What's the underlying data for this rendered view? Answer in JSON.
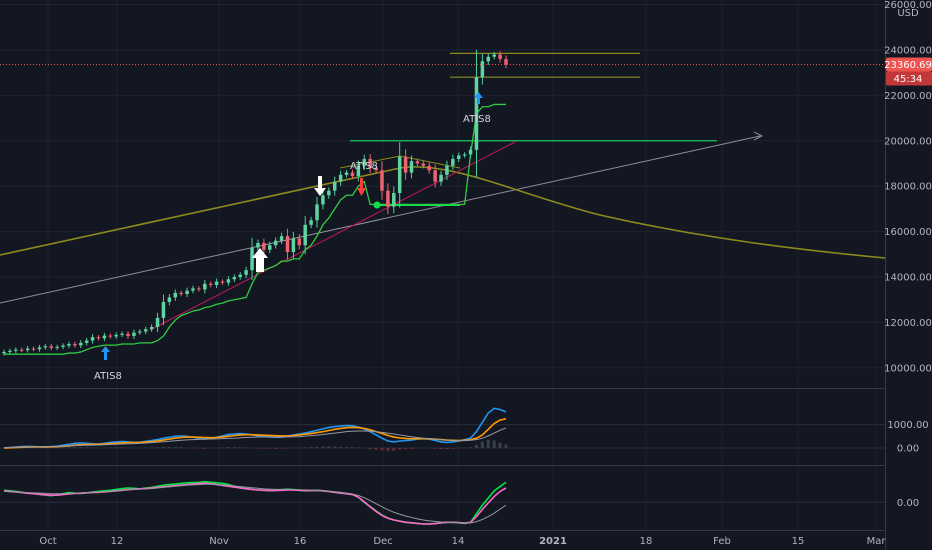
{
  "chart_data": [
    {
      "type": "candlestick",
      "currency": "USD",
      "y_ticks": [
        "10000.00",
        "12000.00",
        "14000.00",
        "16000.00",
        "18000.00",
        "20000.00",
        "22000.00",
        "24000.00",
        "26000.00"
      ],
      "y_tick_values": [
        10000,
        12000,
        14000,
        16000,
        18000,
        20000,
        22000,
        24000,
        26000
      ],
      "ylim": [
        9200,
        26200
      ],
      "x_tick_labels": [
        "Oct",
        "12",
        "Nov",
        "16",
        "Dec",
        "14",
        "2021",
        "18",
        "Feb",
        "15",
        "Mar"
      ],
      "last_price": "23360.69",
      "countdown": "45:34",
      "annotations": [
        "ATIS8",
        "ATIS8",
        "ATIS8"
      ],
      "close_series": [
        10700,
        10750,
        10800,
        10780,
        10850,
        10820,
        10900,
        10950,
        10880,
        10920,
        10980,
        11050,
        10990,
        11100,
        11200,
        11350,
        11300,
        11420,
        11380,
        11450,
        11500,
        11400,
        11550,
        11600,
        11700,
        11800,
        12200,
        12900,
        13100,
        13300,
        13250,
        13400,
        13500,
        13450,
        13700,
        13650,
        13800,
        13750,
        13900,
        14000,
        14100,
        14300,
        15300,
        15500,
        15200,
        15400,
        15600,
        15800,
        15100,
        15700,
        15400,
        16300,
        16500,
        17200,
        17600,
        17800,
        18200,
        18500,
        18600,
        18450,
        18900,
        19200,
        18800,
        18700,
        17800,
        17100,
        17700,
        19300,
        18600,
        19100,
        19000,
        18900,
        18700,
        18200,
        18500,
        18900,
        19200,
        19350,
        19400,
        19600,
        22800,
        23500,
        23700,
        23800,
        23600,
        23360.69
      ],
      "stop_line": [
        10600,
        10600,
        10600,
        10600,
        10600,
        10600,
        10600,
        10600,
        10600,
        10600,
        10600,
        10650,
        10650,
        10700,
        10800,
        10900,
        10950,
        11000,
        11000,
        11000,
        11050,
        11050,
        11050,
        11100,
        11100,
        11100,
        11200,
        11400,
        11800,
        12100,
        12300,
        12400,
        12500,
        12550,
        12650,
        12700,
        12800,
        12850,
        12950,
        13000,
        13050,
        13100,
        13700,
        14200,
        14300,
        14400,
        14500,
        14700,
        14700,
        14800,
        14800,
        15200,
        15400,
        15800,
        16300,
        16600,
        17000,
        17400,
        17600,
        17600,
        18000,
        18200,
        17200,
        17200,
        17200,
        17200,
        17200,
        17200,
        17200,
        17200,
        17200,
        17200,
        17200,
        17200,
        17200,
        17200,
        17200,
        17200,
        17200,
        19400,
        21200,
        21500,
        21500,
        21600,
        21600,
        21600
      ],
      "horizontal_levels": [
        20000,
        23850,
        22800
      ],
      "panels": [
        {
          "y_ticks": [
            "1000.00",
            "0.00"
          ],
          "y_tick_values": [
            1000,
            0
          ],
          "ylim": [
            -600,
            2400
          ],
          "series": [
            {
              "color": "#2196f3",
              "values": [
                0,
                20,
                40,
                60,
                70,
                60,
                50,
                40,
                60,
                80,
                120,
                160,
                200,
                220,
                200,
                180,
                170,
                200,
                240,
                260,
                280,
                260,
                240,
                250,
                280,
                320,
                360,
                420,
                460,
                500,
                520,
                500,
                460,
                420,
                380,
                420,
                460,
                520,
                580,
                600,
                620,
                600,
                560,
                520,
                500,
                480,
                460,
                470,
                500,
                560,
                600,
                640,
                700,
                760,
                820,
                880,
                920,
                940,
                960,
                950,
                900,
                820,
                700,
                560,
                420,
                300,
                260,
                300,
                320,
                340,
                380,
                400,
                380,
                320,
                260,
                240,
                260,
                300,
                360,
                420,
                700,
                1100,
                1500,
                1700,
                1650,
                1550
              ]
            },
            {
              "color": "#ff9800",
              "values": [
                0,
                10,
                20,
                30,
                40,
                45,
                45,
                45,
                50,
                55,
                70,
                90,
                120,
                140,
                150,
                155,
                160,
                170,
                190,
                200,
                220,
                230,
                235,
                240,
                255,
                270,
                300,
                340,
                380,
                420,
                450,
                470,
                470,
                460,
                450,
                440,
                450,
                470,
                500,
                530,
                560,
                570,
                570,
                560,
                550,
                540,
                530,
                520,
                520,
                530,
                560,
                590,
                620,
                660,
                700,
                750,
                800,
                840,
                870,
                880,
                870,
                840,
                780,
                700,
                620,
                540,
                470,
                430,
                410,
                400,
                400,
                400,
                395,
                380,
                360,
                340,
                330,
                320,
                330,
                350,
                420,
                560,
                800,
                1050,
                1200,
                1250
              ]
            },
            {
              "color": "#9598a1",
              "values": [
                20,
                25,
                30,
                35,
                40,
                45,
                50,
                55,
                60,
                70,
                80,
                90,
                100,
                110,
                120,
                125,
                130,
                140,
                150,
                160,
                170,
                180,
                190,
                200,
                215,
                230,
                250,
                270,
                290,
                310,
                330,
                350,
                360,
                370,
                380,
                385,
                390,
                400,
                410,
                420,
                440,
                450,
                460,
                470,
                470,
                470,
                470,
                470,
                475,
                480,
                490,
                510,
                530,
                550,
                580,
                610,
                640,
                670,
                700,
                720,
                730,
                730,
                720,
                700,
                670,
                640,
                600,
                560,
                520,
                480,
                450,
                420,
                400,
                380,
                360,
                340,
                330,
                320,
                320,
                330,
                360,
                420,
                520,
                640,
                760,
                860
              ]
            }
          ]
        },
        {
          "y_ticks": [
            "0.00"
          ],
          "y_tick_values": [
            0
          ],
          "ylim": [
            -900,
            1200
          ],
          "series": [
            {
              "color": "#00e640",
              "values": [
                420,
                400,
                380,
                350,
                320,
                300,
                280,
                250,
                230,
                260,
                300,
                340,
                320,
                310,
                330,
                360,
                380,
                400,
                420,
                450,
                480,
                500,
                490,
                470,
                500,
                520,
                560,
                600,
                620,
                640,
                660,
                680,
                690,
                700,
                720,
                700,
                680,
                660,
                620,
                560,
                520,
                480,
                450,
                430,
                420,
                410,
                420,
                440,
                460,
                440,
                420,
                400,
                410,
                420,
                400,
                380,
                350,
                320,
                300,
                280,
                180,
                0,
                -150,
                -300,
                -450,
                -550,
                -620,
                -660,
                -700,
                -720,
                -740,
                -760,
                -760,
                -740,
                -720,
                -700,
                -700,
                -720,
                -740,
                -700,
                -400,
                -100,
                150,
                400,
                550,
                700
              ]
            },
            {
              "color": "#ff66cc",
              "values": [
                400,
                380,
                360,
                340,
                320,
                300,
                280,
                260,
                250,
                250,
                270,
                290,
                310,
                320,
                330,
                340,
                350,
                360,
                380,
                400,
                420,
                440,
                460,
                470,
                480,
                500,
                520,
                540,
                560,
                580,
                600,
                620,
                640,
                660,
                670,
                650,
                620,
                590,
                560,
                530,
                500,
                470,
                450,
                430,
                420,
                410,
                410,
                420,
                430,
                430,
                420,
                410,
                410,
                410,
                400,
                380,
                350,
                320,
                300,
                270,
                180,
                20,
                -160,
                -320,
                -460,
                -560,
                -620,
                -660,
                -700,
                -720,
                -740,
                -760,
                -760,
                -750,
                -720,
                -700,
                -700,
                -710,
                -730,
                -700,
                -500,
                -250,
                -20,
                200,
                380,
                500
              ]
            },
            {
              "color": "#9598a1",
              "values": [
                380,
                370,
                360,
                350,
                340,
                330,
                320,
                310,
                300,
                300,
                300,
                310,
                320,
                330,
                340,
                350,
                360,
                370,
                380,
                390,
                410,
                430,
                450,
                460,
                470,
                480,
                500,
                520,
                540,
                560,
                580,
                600,
                610,
                620,
                630,
                630,
                620,
                610,
                590,
                570,
                550,
                530,
                510,
                490,
                470,
                460,
                450,
                450,
                450,
                450,
                440,
                430,
                420,
                410,
                400,
                390,
                370,
                350,
                320,
                290,
                240,
                160,
                60,
                -50,
                -160,
                -260,
                -350,
                -420,
                -480,
                -530,
                -580,
                -620,
                -650,
                -670,
                -690,
                -700,
                -700,
                -710,
                -720,
                -720,
                -680,
                -600,
                -500,
                -380,
                -240,
                -100
              ]
            }
          ]
        }
      ]
    }
  ]
}
